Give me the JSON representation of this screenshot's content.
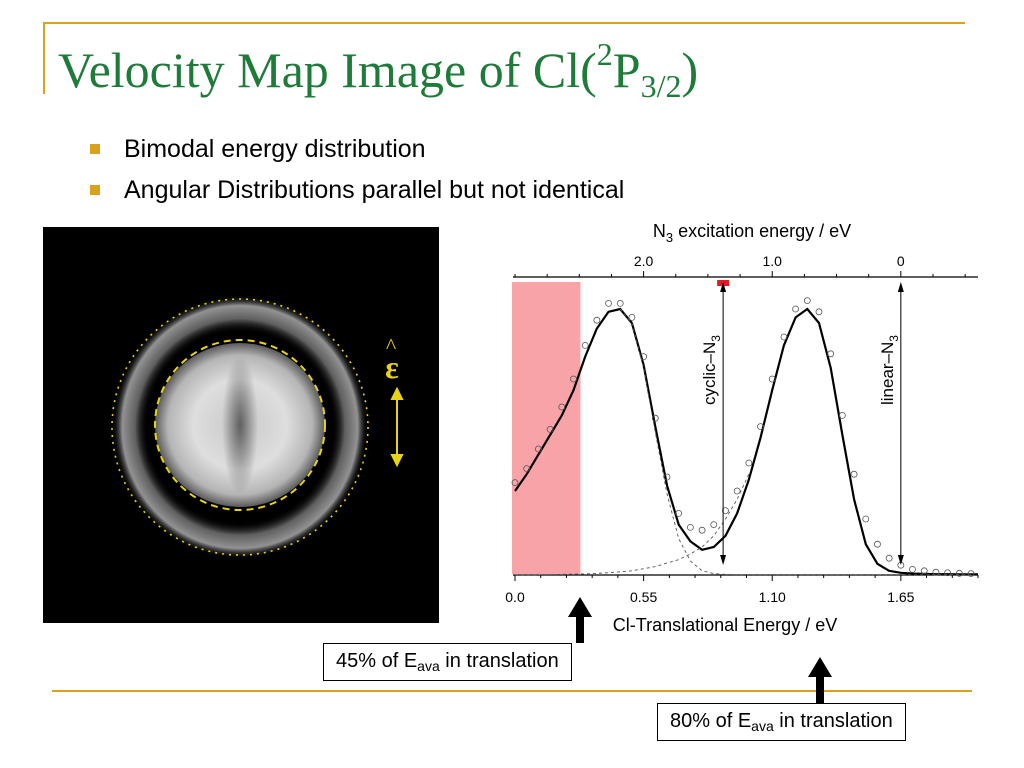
{
  "slide": {
    "title_main": "Velocity Map Image of Cl(",
    "title_sup": "2",
    "title_p": "P",
    "title_sub": "3/2",
    "title_close": ")",
    "bullets": [
      "Bimodal energy distribution",
      "Angular Distributions parallel but not identical"
    ],
    "epsilon_symbol": "ε",
    "epsilon_hat": "^",
    "callout_45": {
      "prefix": "45% of E",
      "sub": "ava",
      "suffix": " in translation"
    },
    "callout_80": {
      "prefix": "80% of E",
      "sub": "ava",
      "suffix": " in translation"
    }
  },
  "colors": {
    "title_green": "#1e7b3a",
    "accent_gold": "#d9a21b",
    "highlight_pink": "#f8a3a8",
    "marker_red": "#e31b23",
    "ring_yellow": "#e8d21a"
  },
  "chart_data": {
    "type": "line",
    "xlabel": "Cl-Translational Energy / eV",
    "x_ticks": [
      "0.0",
      "0.55",
      "1.10",
      "1.65"
    ],
    "x_tick_values": [
      0.0,
      0.55,
      1.1,
      1.65
    ],
    "xlim": [
      0.0,
      1.98
    ],
    "top_axis_label": "N₃ excitation energy / eV",
    "top_axis_label_base": "N",
    "top_axis_label_sub": "3",
    "top_axis_label_rest": " excitation energy / eV",
    "top_ticks": [
      "2.0",
      "1.0",
      "0"
    ],
    "top_tick_positions_in_x": [
      0.55,
      1.1,
      1.65
    ],
    "annotations": [
      {
        "text": "cyclic–N",
        "sub": "3",
        "x": 0.89
      },
      {
        "text": "linear–N",
        "sub": "3",
        "x": 1.65
      }
    ],
    "highlight_range_x": [
      0.0,
      0.28
    ],
    "red_marker_x": 0.89,
    "series": [
      {
        "style": "solid",
        "x": [
          0.0,
          0.05,
          0.1,
          0.15,
          0.2,
          0.25,
          0.3,
          0.35,
          0.4,
          0.45,
          0.5,
          0.55,
          0.6,
          0.65,
          0.7,
          0.75,
          0.8,
          0.85,
          0.9,
          0.95,
          1.0,
          1.05,
          1.1,
          1.15,
          1.2,
          1.25,
          1.3,
          1.35,
          1.4,
          1.45,
          1.5,
          1.55,
          1.6,
          1.65,
          1.7,
          1.75,
          1.8,
          1.85,
          1.9,
          1.95,
          1.98
        ],
        "y": [
          0.3,
          0.36,
          0.43,
          0.5,
          0.57,
          0.66,
          0.78,
          0.88,
          0.94,
          0.95,
          0.9,
          0.75,
          0.53,
          0.32,
          0.18,
          0.12,
          0.09,
          0.1,
          0.14,
          0.22,
          0.34,
          0.49,
          0.66,
          0.82,
          0.92,
          0.95,
          0.9,
          0.74,
          0.5,
          0.27,
          0.11,
          0.04,
          0.015,
          0.008,
          0.005,
          0.004,
          0.003,
          0.003,
          0.002,
          0.002,
          0.002
        ]
      },
      {
        "style": "markers",
        "x": [
          0.0,
          0.05,
          0.1,
          0.15,
          0.2,
          0.25,
          0.3,
          0.35,
          0.4,
          0.45,
          0.5,
          0.55,
          0.6,
          0.65,
          0.7,
          0.75,
          0.8,
          0.85,
          0.9,
          0.95,
          1.0,
          1.05,
          1.1,
          1.15,
          1.2,
          1.25,
          1.3,
          1.35,
          1.4,
          1.45,
          1.5,
          1.55,
          1.6,
          1.65,
          1.7,
          1.75,
          1.8,
          1.85,
          1.9,
          1.95
        ],
        "y": [
          0.33,
          0.38,
          0.45,
          0.52,
          0.6,
          0.7,
          0.82,
          0.91,
          0.97,
          0.97,
          0.92,
          0.78,
          0.56,
          0.35,
          0.22,
          0.17,
          0.16,
          0.18,
          0.23,
          0.3,
          0.4,
          0.53,
          0.7,
          0.85,
          0.95,
          0.98,
          0.94,
          0.79,
          0.57,
          0.36,
          0.2,
          0.11,
          0.06,
          0.035,
          0.02,
          0.015,
          0.01,
          0.008,
          0.006,
          0.005
        ]
      },
      {
        "style": "dashed",
        "x": [
          0.45,
          0.5,
          0.55,
          0.6,
          0.65,
          0.7,
          0.75,
          0.8,
          0.85,
          0.9,
          0.95,
          1.0,
          1.05,
          1.1,
          1.15,
          1.2,
          1.25,
          1.3,
          1.35,
          1.4,
          1.45,
          1.5,
          1.55,
          1.6,
          1.65,
          1.7,
          1.75,
          1.8,
          1.85,
          1.9,
          1.95
        ],
        "y": [
          0.95,
          0.9,
          0.74,
          0.51,
          0.29,
          0.13,
          0.05,
          0.015,
          0.005,
          0.002,
          0.001,
          0.001,
          0.001,
          0.001,
          0.001,
          0.001,
          0.001,
          0.001,
          0.001,
          0.001,
          0.001,
          0.001,
          0.001,
          0.001,
          0.001,
          0.001,
          0.001,
          0.001,
          0.001,
          0.001,
          0.001
        ]
      },
      {
        "style": "dashed",
        "x": [
          0.0,
          0.1,
          0.2,
          0.3,
          0.4,
          0.5,
          0.6,
          0.7,
          0.75,
          0.8,
          0.85,
          0.9,
          0.95,
          1.0
        ],
        "y": [
          0.001,
          0.001,
          0.002,
          0.004,
          0.008,
          0.015,
          0.03,
          0.055,
          0.075,
          0.1,
          0.14,
          0.2,
          0.27,
          0.36
        ]
      }
    ]
  }
}
